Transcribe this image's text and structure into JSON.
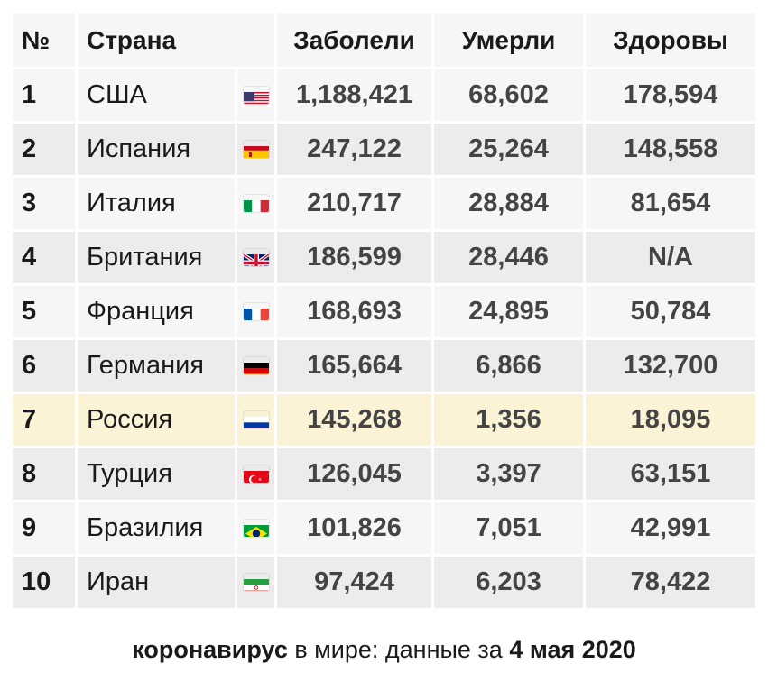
{
  "header": {
    "num": "№",
    "country": "Страна",
    "cases": "Заболели",
    "deaths": "Умерли",
    "recovered": "Здоровы"
  },
  "rows": [
    {
      "num": "1",
      "country": "США",
      "flag": "us-flag-icon",
      "cases": "1,188,421",
      "deaths": "68,602",
      "recovered": "178,594"
    },
    {
      "num": "2",
      "country": "Испания",
      "flag": "spain-flag-icon",
      "cases": "247,122",
      "deaths": "25,264",
      "recovered": "148,558"
    },
    {
      "num": "3",
      "country": "Италия",
      "flag": "italy-flag-icon",
      "cases": "210,717",
      "deaths": "28,884",
      "recovered": "81,654"
    },
    {
      "num": "4",
      "country": "Британия",
      "flag": "uk-flag-icon",
      "cases": "186,599",
      "deaths": "28,446",
      "recovered": "N/A"
    },
    {
      "num": "5",
      "country": "Франция",
      "flag": "france-flag-icon",
      "cases": "168,693",
      "deaths": "24,895",
      "recovered": "50,784"
    },
    {
      "num": "6",
      "country": "Германия",
      "flag": "germany-flag-icon",
      "cases": "165,664",
      "deaths": "6,866",
      "recovered": "132,700"
    },
    {
      "num": "7",
      "country": "Россия",
      "flag": "russia-flag-icon",
      "cases": "145,268",
      "deaths": "1,356",
      "recovered": "18,095"
    },
    {
      "num": "8",
      "country": "Турция",
      "flag": "turkey-flag-icon",
      "cases": "126,045",
      "deaths": "3,397",
      "recovered": "63,151"
    },
    {
      "num": "9",
      "country": "Бразилия",
      "flag": "brazil-flag-icon",
      "cases": "101,826",
      "deaths": "7,051",
      "recovered": "42,991"
    },
    {
      "num": "10",
      "country": "Иран",
      "flag": "iran-flag-icon",
      "cases": "97,424",
      "deaths": "6,203",
      "recovered": "78,422"
    }
  ],
  "highlight_color": "#fbf3d6",
  "footer": {
    "part1": "коронавирус",
    "part2": " в мире: данные за ",
    "part3": "4 мая 2020"
  }
}
